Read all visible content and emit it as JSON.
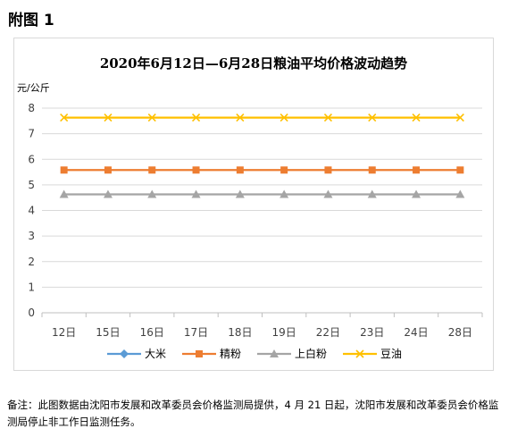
{
  "heading": "附图 1",
  "footnote": "备注：此图数据由沈阳市发展和改革委员会价格监测局提供，4 月 21 日起，沈阳市发展和改革委员会价格监测局停止非工作日监测任务。",
  "chart_data": {
    "type": "line",
    "title": "2020年6月12日—6月28日粮油平均价格波动趋势",
    "ylabel": "元/公斤",
    "xlabel": "",
    "ylim": [
      0,
      8
    ],
    "yticks": [
      "0",
      "1",
      "2",
      "3",
      "4",
      "5",
      "6",
      "7",
      "8"
    ],
    "grid": true,
    "legend_position": "bottom",
    "categories": [
      "12日",
      "15日",
      "16日",
      "17日",
      "18日",
      "19日",
      "22日",
      "23日",
      "24日",
      "28日"
    ],
    "series": [
      {
        "name": "大米",
        "color": "#5b9bd5",
        "marker": "diamond",
        "values": [
          null,
          null,
          null,
          null,
          null,
          null,
          null,
          null,
          null,
          null
        ]
      },
      {
        "name": "精粉",
        "color": "#ed7d31",
        "marker": "square",
        "values": [
          5.58,
          5.58,
          5.58,
          5.58,
          5.58,
          5.58,
          5.58,
          5.58,
          5.58,
          5.58
        ]
      },
      {
        "name": "上白粉",
        "color": "#a5a5a5",
        "marker": "triangle",
        "values": [
          4.63,
          4.63,
          4.63,
          4.63,
          4.63,
          4.63,
          4.63,
          4.63,
          4.63,
          4.63
        ]
      },
      {
        "name": "豆油",
        "color": "#ffc000",
        "marker": "x",
        "values": [
          7.63,
          7.63,
          7.63,
          7.63,
          7.63,
          7.63,
          7.63,
          7.63,
          7.63,
          7.63
        ]
      }
    ]
  }
}
